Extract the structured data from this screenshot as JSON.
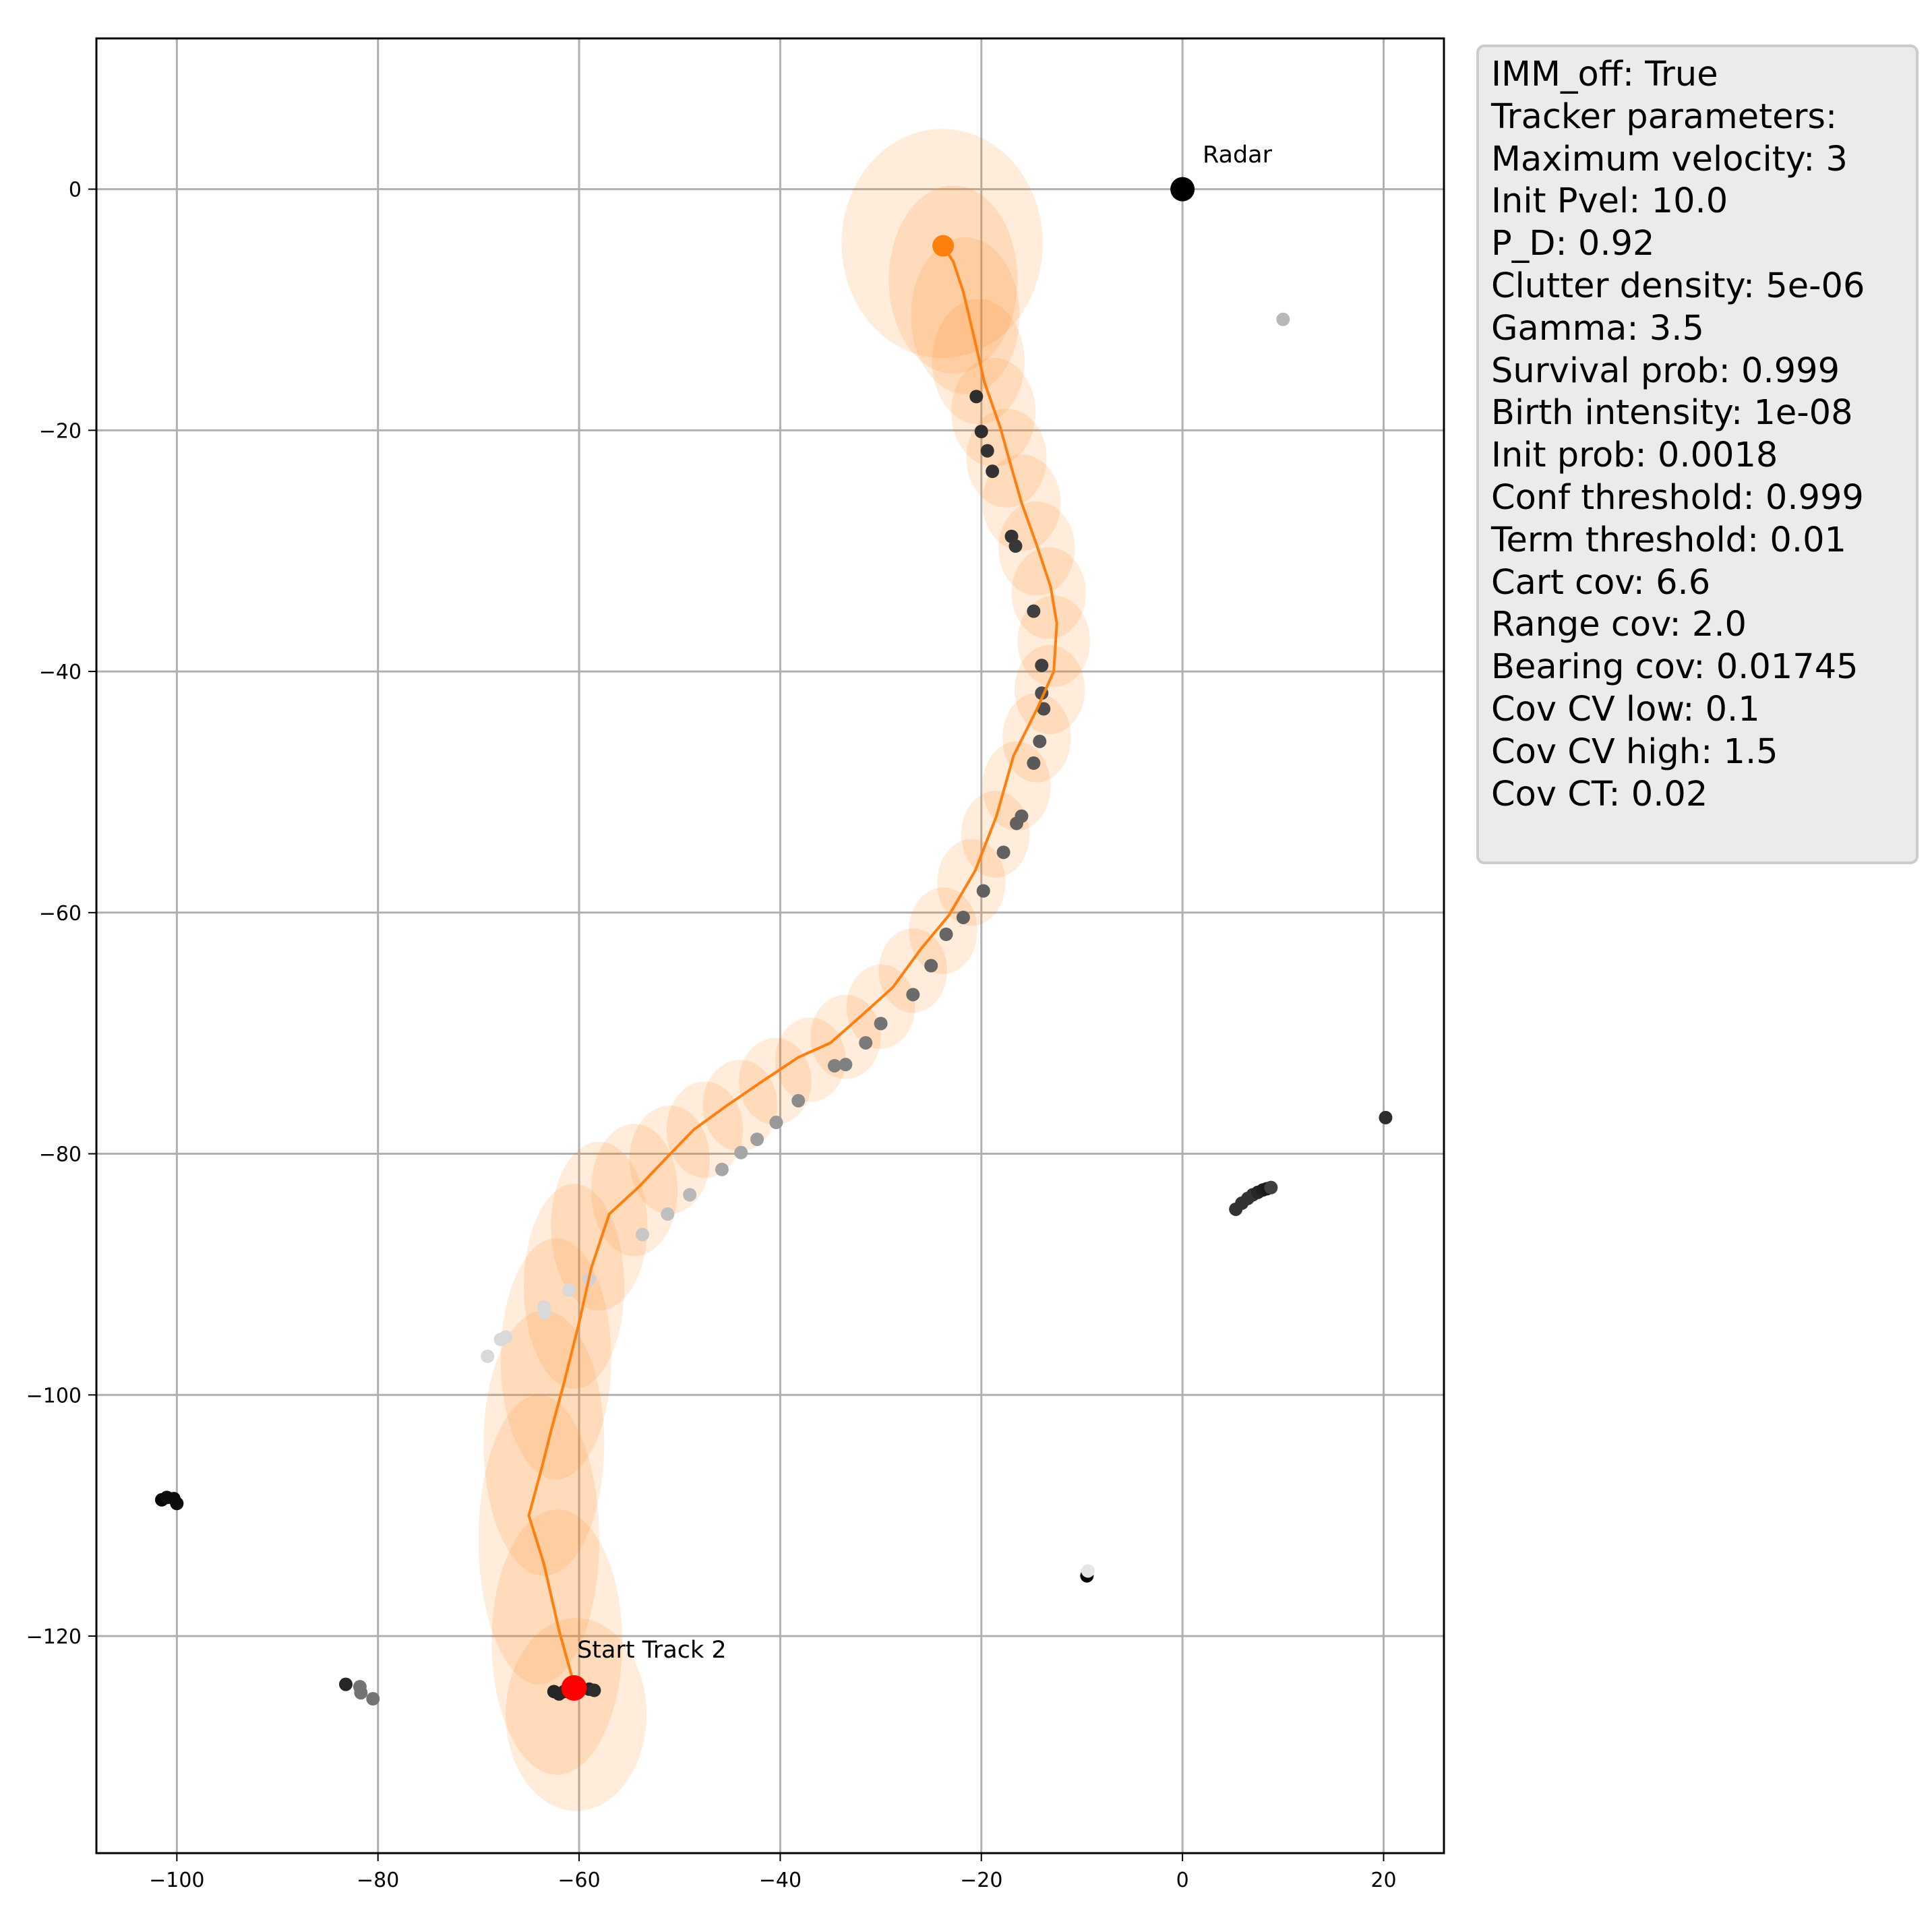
{
  "chart_data": {
    "type": "scatter",
    "xlim": [
      -108,
      26
    ],
    "ylim": [
      -138,
      12.5
    ],
    "x_ticks": [
      -100,
      -80,
      -60,
      -40,
      -20,
      0,
      20
    ],
    "y_ticks": [
      0,
      -20,
      -40,
      -60,
      -80,
      -100,
      -120
    ],
    "grid": true,
    "colors": {
      "track": "#ff7f0e",
      "start": "#ff0000",
      "radar": "#000000"
    },
    "track": {
      "x": [
        -60.5,
        -62,
        -63.5,
        -65,
        -63.7,
        -62.8,
        -61.5,
        -60,
        -58.8,
        -57,
        -54,
        -51.5,
        -48.6,
        -45.3,
        -41.8,
        -38.2,
        -35,
        -32,
        -28.8,
        -26,
        -23.2,
        -20.6,
        -18.5,
        -16.8,
        -14.4,
        -12.8,
        -12.5,
        -13.1,
        -14.5,
        -16,
        -17.1,
        -18.1,
        -19.7,
        -20.8,
        -21.8,
        -22.8,
        -23.8
      ],
      "y": [
        -124,
        -119.5,
        -114,
        -110,
        -106,
        -103,
        -99,
        -94,
        -89.5,
        -85,
        -82.7,
        -80.5,
        -78,
        -76,
        -74,
        -72,
        -70.8,
        -68.6,
        -66.2,
        -63,
        -60.2,
        -56.5,
        -52,
        -47,
        -43,
        -40,
        -36,
        -33,
        -29.5,
        -26,
        -22.8,
        -19.8,
        -16,
        -12,
        -8.5,
        -6,
        -4.7
      ]
    },
    "covariance_ellipses": [
      {
        "cx": -60.3,
        "cy": -126.5,
        "rx": 7,
        "ry": 8
      },
      {
        "cx": -62.2,
        "cy": -120.5,
        "rx": 6.5,
        "ry": 11
      },
      {
        "cx": -64,
        "cy": -112,
        "rx": 6,
        "ry": 12
      },
      {
        "cx": -63.5,
        "cy": -104,
        "rx": 6,
        "ry": 11
      },
      {
        "cx": -62.3,
        "cy": -97,
        "rx": 5.5,
        "ry": 10
      },
      {
        "cx": -60.5,
        "cy": -91,
        "rx": 5,
        "ry": 8.5
      },
      {
        "cx": -58,
        "cy": -86,
        "rx": 4.8,
        "ry": 7
      },
      {
        "cx": -54.5,
        "cy": -83,
        "rx": 4.3,
        "ry": 5.5
      },
      {
        "cx": -51,
        "cy": -80.5,
        "rx": 4,
        "ry": 4.5
      },
      {
        "cx": -47.5,
        "cy": -78,
        "rx": 3.8,
        "ry": 4
      },
      {
        "cx": -44,
        "cy": -76,
        "rx": 3.7,
        "ry": 3.8
      },
      {
        "cx": -40.5,
        "cy": -74,
        "rx": 3.6,
        "ry": 3.6
      },
      {
        "cx": -37,
        "cy": -72.2,
        "rx": 3.5,
        "ry": 3.5
      },
      {
        "cx": -33.5,
        "cy": -70.3,
        "rx": 3.5,
        "ry": 3.5
      },
      {
        "cx": -30,
        "cy": -67.8,
        "rx": 3.4,
        "ry": 3.5
      },
      {
        "cx": -26.8,
        "cy": -64.8,
        "rx": 3.4,
        "ry": 3.5
      },
      {
        "cx": -23.8,
        "cy": -61.5,
        "rx": 3.4,
        "ry": 3.6
      },
      {
        "cx": -21,
        "cy": -57.5,
        "rx": 3.4,
        "ry": 3.6
      },
      {
        "cx": -18.6,
        "cy": -53.5,
        "rx": 3.4,
        "ry": 3.6
      },
      {
        "cx": -16.5,
        "cy": -49.5,
        "rx": 3.4,
        "ry": 3.7
      },
      {
        "cx": -14.5,
        "cy": -45.5,
        "rx": 3.4,
        "ry": 3.7
      },
      {
        "cx": -13.2,
        "cy": -41.5,
        "rx": 3.5,
        "ry": 3.7
      },
      {
        "cx": -12.8,
        "cy": -37.5,
        "rx": 3.6,
        "ry": 3.8
      },
      {
        "cx": -13.3,
        "cy": -33.5,
        "rx": 3.7,
        "ry": 3.8
      },
      {
        "cx": -14.5,
        "cy": -29.8,
        "rx": 3.8,
        "ry": 3.9
      },
      {
        "cx": -16,
        "cy": -26,
        "rx": 3.9,
        "ry": 4
      },
      {
        "cx": -17.5,
        "cy": -22.3,
        "rx": 4,
        "ry": 4.1
      },
      {
        "cx": -18.8,
        "cy": -18.5,
        "rx": 4.2,
        "ry": 4.5
      },
      {
        "cx": -20.3,
        "cy": -14.3,
        "rx": 4.6,
        "ry": 5.2
      },
      {
        "cx": -21.6,
        "cy": -10.5,
        "rx": 5.4,
        "ry": 6.5
      },
      {
        "cx": -22.8,
        "cy": -7.5,
        "rx": 6.4,
        "ry": 7.8
      },
      {
        "cx": -23.9,
        "cy": -4.5,
        "rx": 10,
        "ry": 9.5
      }
    ],
    "measurements": [
      {
        "x": -20.5,
        "y": -17.2,
        "shade": 0.18
      },
      {
        "x": -20,
        "y": -20.1,
        "shade": 0.18
      },
      {
        "x": -19.4,
        "y": -21.7,
        "shade": 0.2
      },
      {
        "x": -18.9,
        "y": -23.4,
        "shade": 0.2
      },
      {
        "x": -17,
        "y": -28.8,
        "shade": 0.2
      },
      {
        "x": -16.6,
        "y": -29.6,
        "shade": 0.22
      },
      {
        "x": -14.8,
        "y": -35,
        "shade": 0.25
      },
      {
        "x": -14,
        "y": -39.5,
        "shade": 0.25
      },
      {
        "x": -14,
        "y": -41.8,
        "shade": 0.3
      },
      {
        "x": -13.8,
        "y": -43.1,
        "shade": 0.3
      },
      {
        "x": -14.2,
        "y": -45.8,
        "shade": 0.35
      },
      {
        "x": -14.8,
        "y": -47.6,
        "shade": 0.35
      },
      {
        "x": -16,
        "y": -52,
        "shade": 0.38
      },
      {
        "x": -16.5,
        "y": -52.6,
        "shade": 0.38
      },
      {
        "x": -17.8,
        "y": -55,
        "shade": 0.38
      },
      {
        "x": -19.8,
        "y": -58.2,
        "shade": 0.38
      },
      {
        "x": -21.8,
        "y": -60.4,
        "shade": 0.38
      },
      {
        "x": -23.5,
        "y": -61.8,
        "shade": 0.4
      },
      {
        "x": -25,
        "y": -64.4,
        "shade": 0.4
      },
      {
        "x": -26.8,
        "y": -66.8,
        "shade": 0.42
      },
      {
        "x": -30,
        "y": -69.2,
        "shade": 0.45
      },
      {
        "x": -31.5,
        "y": -70.8,
        "shade": 0.48
      },
      {
        "x": -33.5,
        "y": -72.6,
        "shade": 0.5
      },
      {
        "x": -34.6,
        "y": -72.7,
        "shade": 0.5
      },
      {
        "x": -38.2,
        "y": -75.6,
        "shade": 0.55
      },
      {
        "x": -40.4,
        "y": -77.4,
        "shade": 0.6
      },
      {
        "x": -42.3,
        "y": -78.8,
        "shade": 0.62
      },
      {
        "x": -43.9,
        "y": -79.9,
        "shade": 0.65
      },
      {
        "x": -45.8,
        "y": -81.3,
        "shade": 0.65
      },
      {
        "x": -49,
        "y": -83.4,
        "shade": 0.72
      },
      {
        "x": -51.2,
        "y": -85,
        "shade": 0.75
      },
      {
        "x": -53.7,
        "y": -86.7,
        "shade": 0.78
      },
      {
        "x": -59,
        "y": -90.4,
        "shade": 0.82
      },
      {
        "x": -61,
        "y": -91.3,
        "shade": 0.85
      },
      {
        "x": -63.4,
        "y": -93.2,
        "shade": 0.85
      },
      {
        "x": -63.5,
        "y": -92.7,
        "shade": 0.85
      },
      {
        "x": -67.3,
        "y": -95.2,
        "shade": 0.85
      },
      {
        "x": -67.8,
        "y": -95.4,
        "shade": 0.85
      },
      {
        "x": -69.1,
        "y": -96.8,
        "shade": 0.85
      },
      {
        "x": -62.5,
        "y": -124.6,
        "shade": 0.15
      },
      {
        "x": -62,
        "y": -124.8,
        "shade": 0.15
      },
      {
        "x": -61.5,
        "y": -124.6,
        "shade": 0.15
      },
      {
        "x": -59,
        "y": -124.4,
        "shade": 0.15
      },
      {
        "x": -58.5,
        "y": -124.5,
        "shade": 0.18
      },
      {
        "x": -101.5,
        "y": -108.7,
        "shade": 0.02
      },
      {
        "x": -101,
        "y": -108.5,
        "shade": 0.05
      },
      {
        "x": -100.3,
        "y": -108.6,
        "shade": 0.05
      },
      {
        "x": -100,
        "y": -109,
        "shade": 0.05
      },
      {
        "x": -83.2,
        "y": -124,
        "shade": 0.15
      },
      {
        "x": -81.8,
        "y": -124.2,
        "shade": 0.45
      },
      {
        "x": -81.7,
        "y": -124.7,
        "shade": 0.45
      },
      {
        "x": -80.5,
        "y": -125.2,
        "shade": 0.45
      },
      {
        "x": -9.5,
        "y": -115,
        "shade": 0.02
      },
      {
        "x": -9.4,
        "y": -114.6,
        "shade": 0.9
      },
      {
        "x": 10,
        "y": -10.8,
        "shade": 0.72
      },
      {
        "x": 20.2,
        "y": -77,
        "shade": 0.18
      },
      {
        "x": 5.3,
        "y": -84.6,
        "shade": 0.2
      },
      {
        "x": 5.9,
        "y": -84.1,
        "shade": 0.2
      },
      {
        "x": 6.5,
        "y": -83.7,
        "shade": 0.2
      },
      {
        "x": 7,
        "y": -83.4,
        "shade": 0.2
      },
      {
        "x": 7.5,
        "y": -83.2,
        "shade": 0.15
      },
      {
        "x": 8,
        "y": -83,
        "shade": 0.12
      },
      {
        "x": 8.4,
        "y": -82.9,
        "shade": 0.1
      },
      {
        "x": 8.8,
        "y": -82.8,
        "shade": 0.25
      }
    ],
    "end_point": {
      "x": -23.8,
      "y": -4.7
    },
    "start_point": {
      "x": -60.5,
      "y": -124.3
    },
    "radar": {
      "x": 0,
      "y": 0
    },
    "annotations": [
      {
        "text": "Radar",
        "x": 2,
        "y": 2.2
      },
      {
        "text": "Start Track 2",
        "x": -60.2,
        "y": -121.8
      }
    ]
  },
  "info_lines": [
    "IMM_off: True",
    "Tracker parameters:",
    "Maximum velocity: 3",
    "Init Pvel: 10.0",
    "P_D: 0.92",
    "Clutter density: 5e-06",
    "Gamma: 3.5",
    "Survival prob: 0.999",
    "Birth intensity: 1e-08",
    "Init prob: 0.0018",
    "Conf threshold: 0.999",
    "Term threshold: 0.01",
    "Cart cov: 6.6",
    "Range cov: 2.0",
    "Bearing cov: 0.01745",
    "Cov CV low: 0.1",
    "Cov CV high: 1.5",
    "Cov CT: 0.02"
  ]
}
